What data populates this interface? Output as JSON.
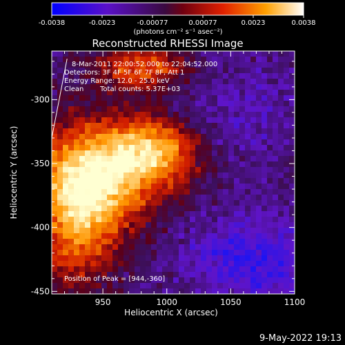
{
  "chart_data": {
    "type": "heatmap",
    "title": "Reconstructed RHESSI Image",
    "xlabel": "Heliocentric X (arcsec)",
    "ylabel": "Heliocentric Y (arcsec)",
    "xlim": [
      910,
      1100
    ],
    "ylim": [
      -452,
      -262
    ],
    "x_ticks": [
      950,
      1000,
      1050,
      1100
    ],
    "y_ticks": [
      -300,
      -350,
      -400,
      -450
    ],
    "colorbar": {
      "min": -0.0038,
      "max": 0.0038,
      "ticks": [
        "-0.0038",
        "-0.0023",
        "-0.00077",
        "0.00077",
        "0.0023",
        "0.0038"
      ],
      "unit_label": "(photons cm⁻² s⁻¹ asec⁻²)",
      "colormap": [
        "#0000ff",
        "#6a00b0",
        "#600010",
        "#e03000",
        "#ff9a00",
        "#ffffe0"
      ]
    },
    "annotations": [
      "8-Mar-2011 22:00:52.000 to 22:04:52.000",
      "Detectors: 3F 4F 5F 6F 7F 8F, Att 1",
      "Energy Range: 12.0 - 25.0 keV",
      "Clean",
      "Total counts: 5.37E+03"
    ],
    "peak_label": "Position of Peak = [944,-360]",
    "peak": [
      944,
      -360
    ],
    "limb_line": [
      [
        910,
        -330
      ],
      [
        922,
        -268
      ]
    ]
  },
  "footer": {
    "date": "9-May-2022 19:13"
  }
}
